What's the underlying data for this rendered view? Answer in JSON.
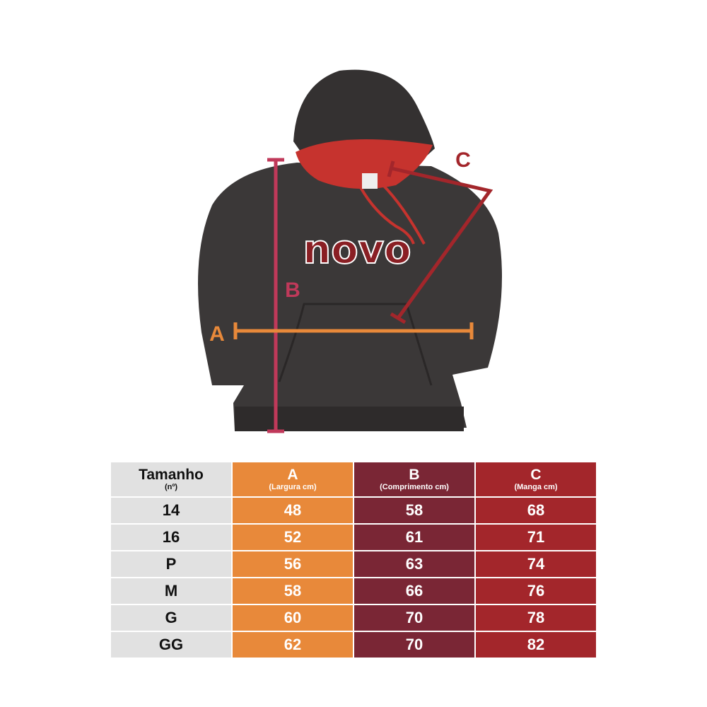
{
  "photo": {
    "print_text": "novo",
    "labels": {
      "a": "A",
      "b": "B",
      "c": "C"
    },
    "colors": {
      "hoodie": "#3b3838",
      "lining": "#c6332e",
      "a_line": "#e8893a",
      "b_line": "#c0395a",
      "c_line": "#a3262b"
    }
  },
  "table": {
    "headers": [
      {
        "main": "Tamanho",
        "sub": "(nº)"
      },
      {
        "main": "A",
        "sub": "(Largura cm)"
      },
      {
        "main": "B",
        "sub": "(Comprimento cm)"
      },
      {
        "main": "C",
        "sub": "(Manga cm)"
      }
    ],
    "rows": [
      [
        "14",
        "48",
        "58",
        "68"
      ],
      [
        "16",
        "52",
        "61",
        "71"
      ],
      [
        "P",
        "56",
        "63",
        "74"
      ],
      [
        "M",
        "58",
        "66",
        "76"
      ],
      [
        "G",
        "60",
        "70",
        "78"
      ],
      [
        "GG",
        "62",
        "70",
        "82"
      ]
    ],
    "colors": [
      "#e1e1e1",
      "#e8893a",
      "#7a2635",
      "#a3262b"
    ]
  }
}
